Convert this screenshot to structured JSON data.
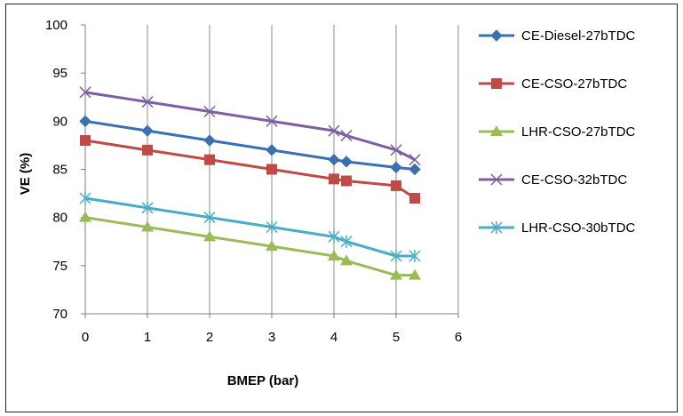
{
  "chart_data": {
    "type": "line",
    "xlabel": "BMEP (bar)",
    "ylabel": "VE (%)",
    "xlim": [
      0,
      6
    ],
    "ylim": [
      70,
      100
    ],
    "x_ticks": [
      "0",
      "1",
      "2",
      "3",
      "4",
      "5",
      "6"
    ],
    "y_ticks": [
      "70",
      "75",
      "80",
      "85",
      "90",
      "95",
      "100"
    ],
    "grid": "vertical",
    "legend_position": "right",
    "series": [
      {
        "name": "CE-Diesel-27bTDC",
        "color": "#3C6FB0",
        "marker": "diamond",
        "x": [
          0,
          1,
          2,
          3,
          4,
          4.2,
          5,
          5.3
        ],
        "y": [
          90,
          89,
          88,
          87,
          86,
          85.8,
          85.2,
          85
        ]
      },
      {
        "name": "CE-CSO-27bTDC",
        "color": "#BE4B48",
        "marker": "square",
        "x": [
          0,
          1,
          2,
          3,
          4,
          4.2,
          5,
          5.3
        ],
        "y": [
          88,
          87,
          86,
          85,
          84,
          83.8,
          83.3,
          82
        ]
      },
      {
        "name": "LHR-CSO-27bTDC",
        "color": "#9BBB59",
        "marker": "triangle",
        "x": [
          0,
          1,
          2,
          3,
          4,
          4.2,
          5,
          5.3
        ],
        "y": [
          80,
          79,
          78,
          77,
          76,
          75.5,
          74,
          74
        ]
      },
      {
        "name": "CE-CSO-32bTDC",
        "color": "#7E5FA0",
        "marker": "x",
        "x": [
          0,
          1,
          2,
          3,
          4,
          4.2,
          5,
          5.3
        ],
        "y": [
          93,
          92,
          91,
          90,
          89,
          88.5,
          87,
          86
        ]
      },
      {
        "name": "LHR-CSO-30bTDC",
        "color": "#4BACC6",
        "marker": "asterisk",
        "x": [
          0,
          1,
          2,
          3,
          4,
          4.2,
          5,
          5.3
        ],
        "y": [
          82,
          81,
          80,
          79,
          78,
          77.5,
          76,
          76
        ]
      }
    ]
  }
}
